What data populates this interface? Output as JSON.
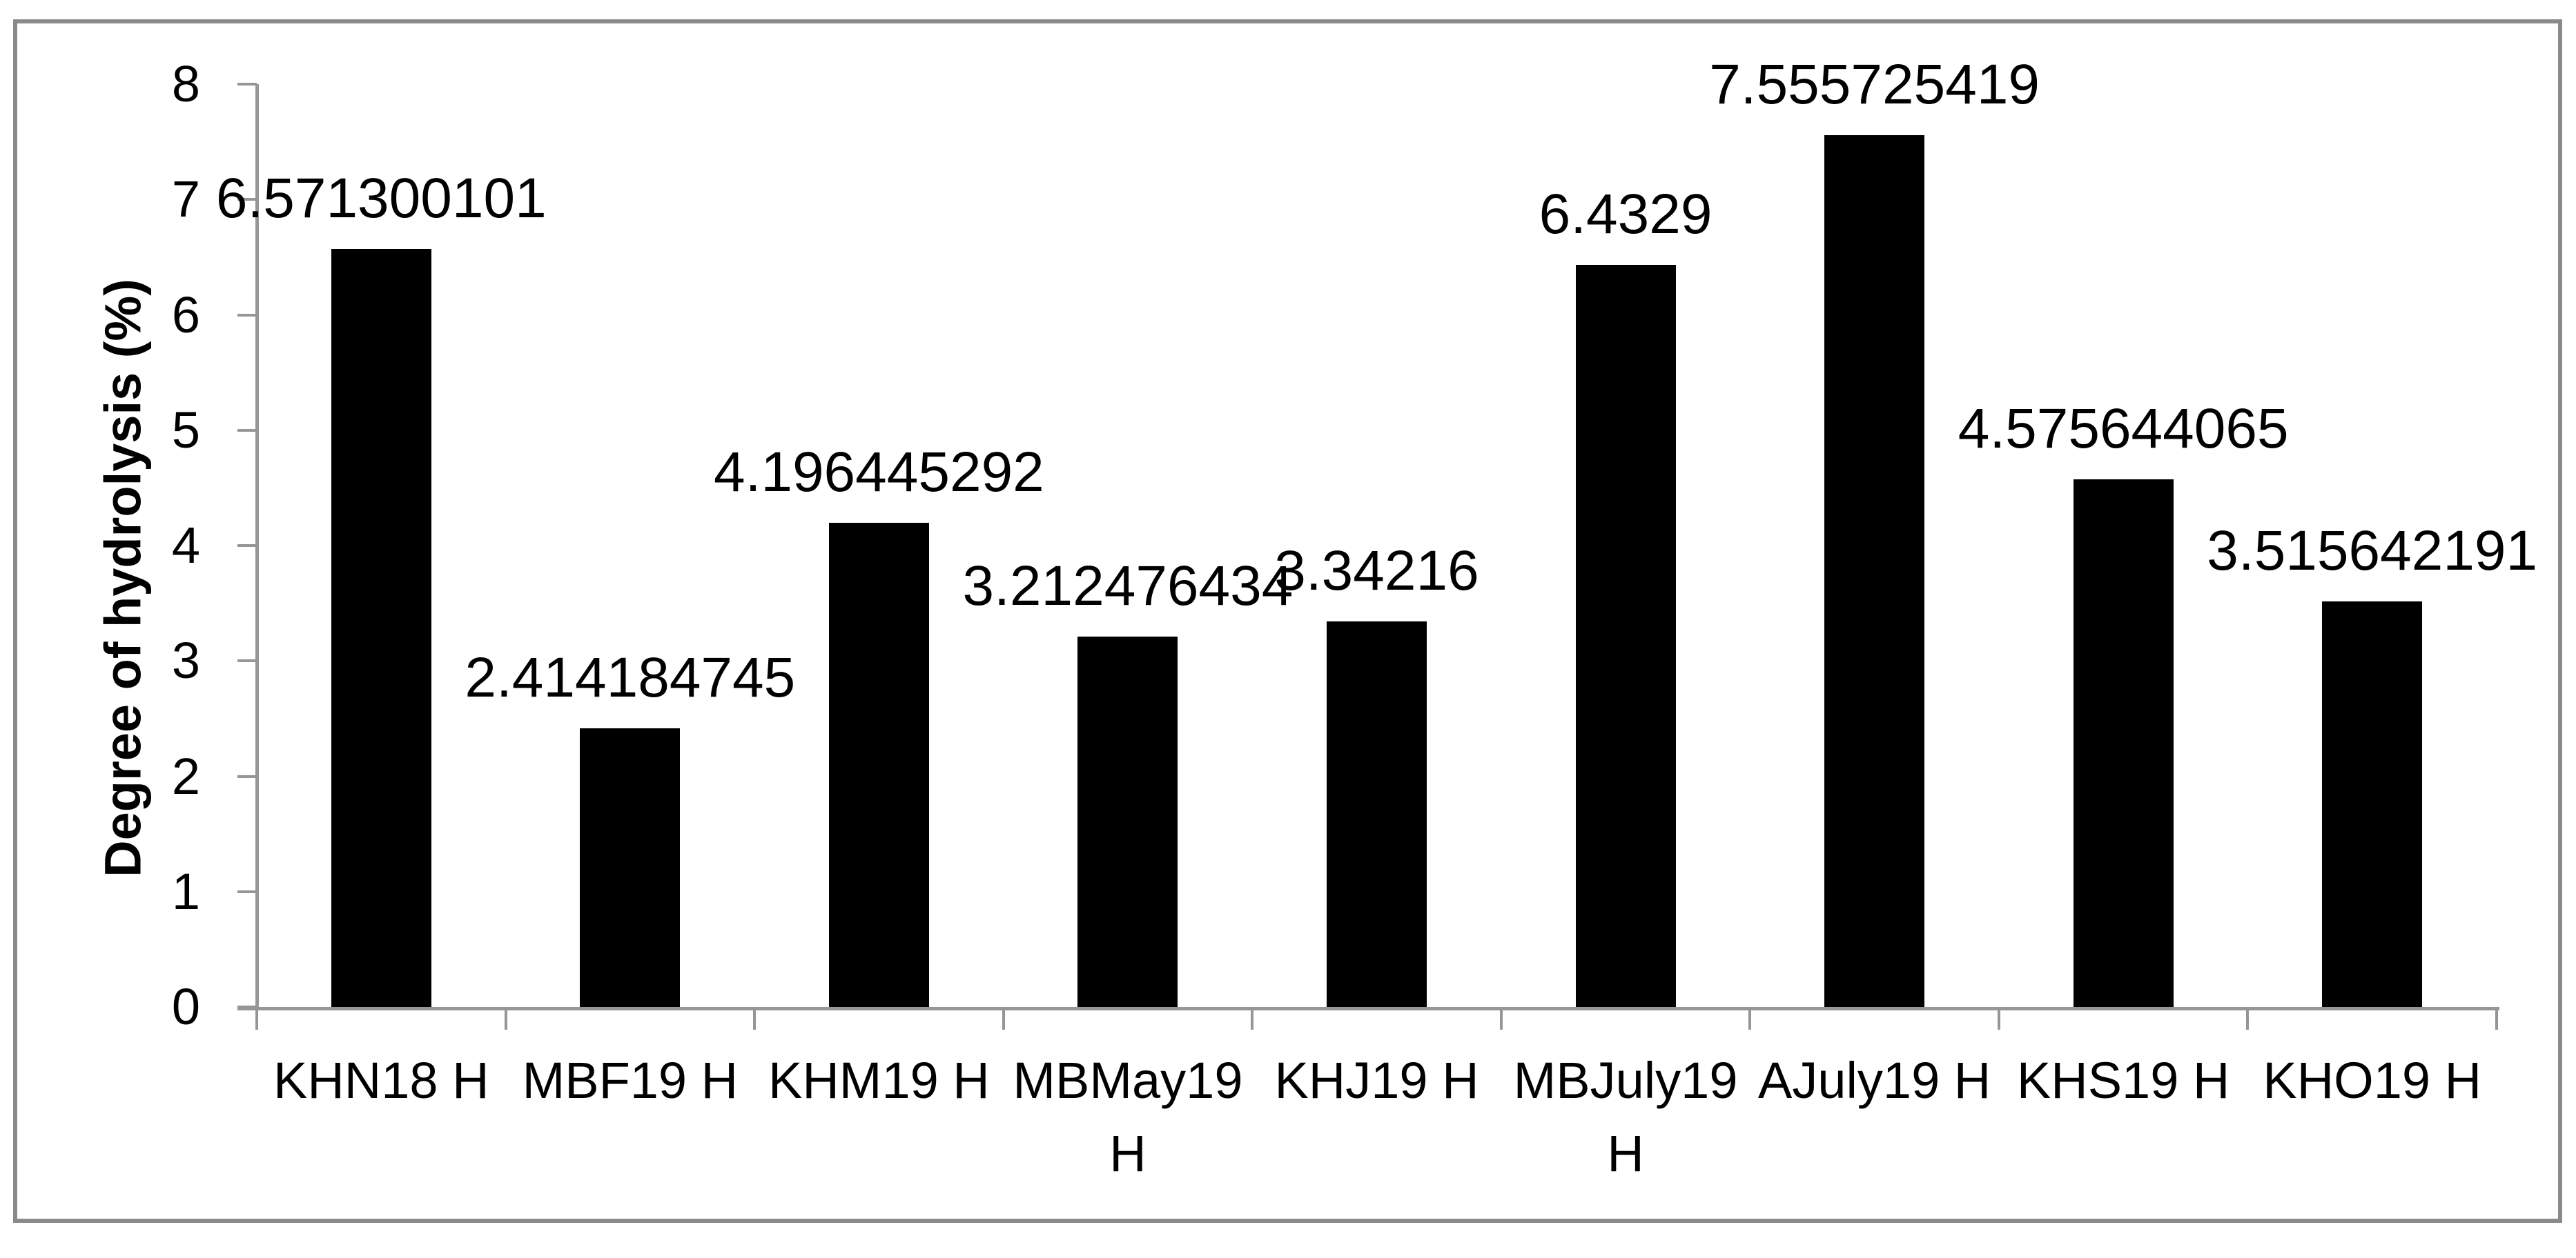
{
  "chart_data": {
    "type": "bar",
    "title": "",
    "xlabel": "",
    "ylabel": "Degree of hydrolysis (%)",
    "categories": [
      "KHN18 H",
      "MBF19 H",
      "KHM19 H",
      "MBMay19 H",
      "KHJ19 H",
      "MBJuly19 H",
      "AJuly19 H",
      "KHS19 H",
      "KHO19 H"
    ],
    "values": [
      6.571300101,
      2.414184745,
      4.196445292,
      3.212476434,
      3.34216,
      6.4329,
      7.555725419,
      4.575644065,
      3.515642191
    ],
    "data_labels": [
      "6.571300101",
      "2.414184745",
      "4.196445292",
      "3.212476434",
      "3.34216",
      "6.4329",
      "7.555725419",
      "4.575644065",
      "3.515642191"
    ],
    "ylim": [
      0,
      8
    ],
    "yticks": [
      0,
      1,
      2,
      3,
      4,
      5,
      6,
      7,
      8
    ],
    "grid": false,
    "legend_position": "none",
    "bar_color": "#000000",
    "axis_color": "#969696",
    "frame_color": "#8a8a8a",
    "text_color": "#000000"
  }
}
